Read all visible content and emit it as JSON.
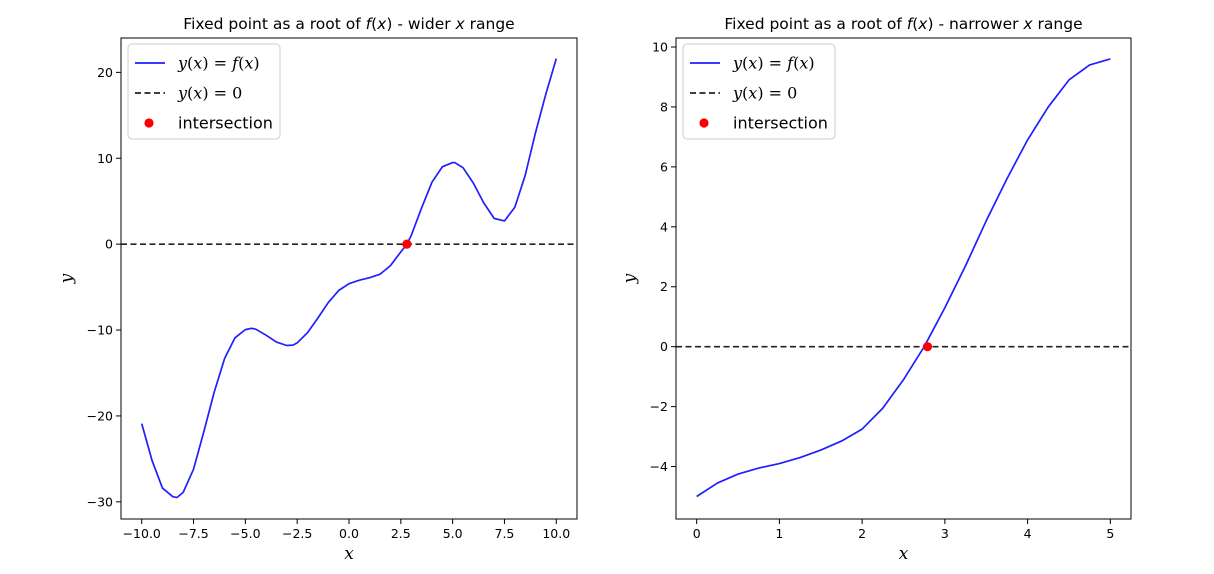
{
  "chart_data": [
    {
      "type": "line",
      "title": {
        "text": "Fixed point as a root of ",
        "fn": "f(x)",
        "mid": " - wider ",
        "var": "x",
        "end": " range"
      },
      "xlabel": "x",
      "ylabel": "y",
      "xlim": [
        -11,
        11
      ],
      "ylim": [
        -32,
        24
      ],
      "xticks": [
        -10,
        -7.5,
        -5,
        -2.5,
        0,
        2.5,
        5,
        7.5,
        10
      ],
      "xtick_labels": [
        "−10.0",
        "−7.5",
        "−5.0",
        "−2.5",
        "0.0",
        "2.5",
        "5.0",
        "7.5",
        "10.0"
      ],
      "yticks": [
        -30,
        -20,
        -10,
        0,
        10,
        20
      ],
      "ytick_labels": [
        "−30",
        "−20",
        "−10",
        "0",
        "10",
        "20"
      ],
      "legend_position": "top-left",
      "series": [
        {
          "name": "y(x) = f(x)",
          "color": "#1f1fff",
          "style": "solid",
          "x": [
            -10,
            -9.5,
            -9,
            -8.5,
            -8.3,
            -8,
            -7.5,
            -7,
            -6.5,
            -6,
            -5.5,
            -5,
            -4.7,
            -4.5,
            -4,
            -3.5,
            -3,
            -2.7,
            -2.5,
            -2,
            -1.5,
            -1,
            -0.5,
            0,
            0.5,
            1,
            1.5,
            2,
            2.5,
            2.8,
            3,
            3.5,
            4,
            4.5,
            5,
            5.1,
            5.5,
            6,
            6.5,
            7,
            7.5,
            8,
            8.5,
            9,
            9.5,
            10
          ],
          "y": [
            -20.9,
            -25.2,
            -28.4,
            -29.4,
            -29.5,
            -28.9,
            -26.2,
            -21.8,
            -17.2,
            -13.3,
            -10.9,
            -9.95,
            -9.8,
            -9.9,
            -10.6,
            -11.4,
            -11.8,
            -11.75,
            -11.5,
            -10.3,
            -8.6,
            -6.8,
            -5.4,
            -4.6,
            -4.2,
            -3.9,
            -3.5,
            -2.5,
            -0.9,
            0,
            1.0,
            4.2,
            7.2,
            9.0,
            9.5,
            9.5,
            8.9,
            7.1,
            4.8,
            3.0,
            2.7,
            4.3,
            8.0,
            13.0,
            17.5,
            21.6
          ]
        },
        {
          "name": "y(x) = 0",
          "color": "#222222",
          "style": "dashed",
          "x": [
            -11,
            11
          ],
          "y": [
            0,
            0
          ]
        },
        {
          "name": "intersection",
          "color": "#ff0000",
          "style": "marker",
          "x": [
            2.79
          ],
          "y": [
            0
          ]
        }
      ]
    },
    {
      "type": "line",
      "title": {
        "text": "Fixed point as a root of ",
        "fn": "f(x)",
        "mid": " - narrower ",
        "var": "x",
        "end": " range"
      },
      "xlabel": "x",
      "ylabel": "y",
      "xlim": [
        -0.25,
        5.25
      ],
      "ylim": [
        -5.75,
        10.3
      ],
      "xticks": [
        0,
        1,
        2,
        3,
        4,
        5
      ],
      "xtick_labels": [
        "0",
        "1",
        "2",
        "3",
        "4",
        "5"
      ],
      "yticks": [
        -4,
        -2,
        0,
        2,
        4,
        6,
        8,
        10
      ],
      "ytick_labels": [
        "−4",
        "−2",
        "0",
        "2",
        "4",
        "6",
        "8",
        "10"
      ],
      "legend_position": "top-left",
      "series": [
        {
          "name": "y(x) = f(x)",
          "color": "#1f1fff",
          "style": "solid",
          "x": [
            0,
            0.25,
            0.5,
            0.75,
            1,
            1.25,
            1.5,
            1.75,
            2,
            2.25,
            2.5,
            2.75,
            3,
            3.25,
            3.5,
            3.75,
            4,
            4.25,
            4.5,
            4.75,
            5
          ],
          "y": [
            -5.0,
            -4.55,
            -4.25,
            -4.05,
            -3.9,
            -3.7,
            -3.45,
            -3.15,
            -2.75,
            -2.05,
            -1.1,
            0.0,
            1.3,
            2.7,
            4.2,
            5.6,
            6.9,
            8.0,
            8.9,
            9.4,
            9.6
          ]
        },
        {
          "name": "y(x) = 0",
          "color": "#222222",
          "style": "dashed",
          "x": [
            -0.25,
            5.25
          ],
          "y": [
            0,
            0
          ]
        },
        {
          "name": "intersection",
          "color": "#ff0000",
          "style": "marker",
          "x": [
            2.79
          ],
          "y": [
            0
          ]
        }
      ]
    }
  ]
}
